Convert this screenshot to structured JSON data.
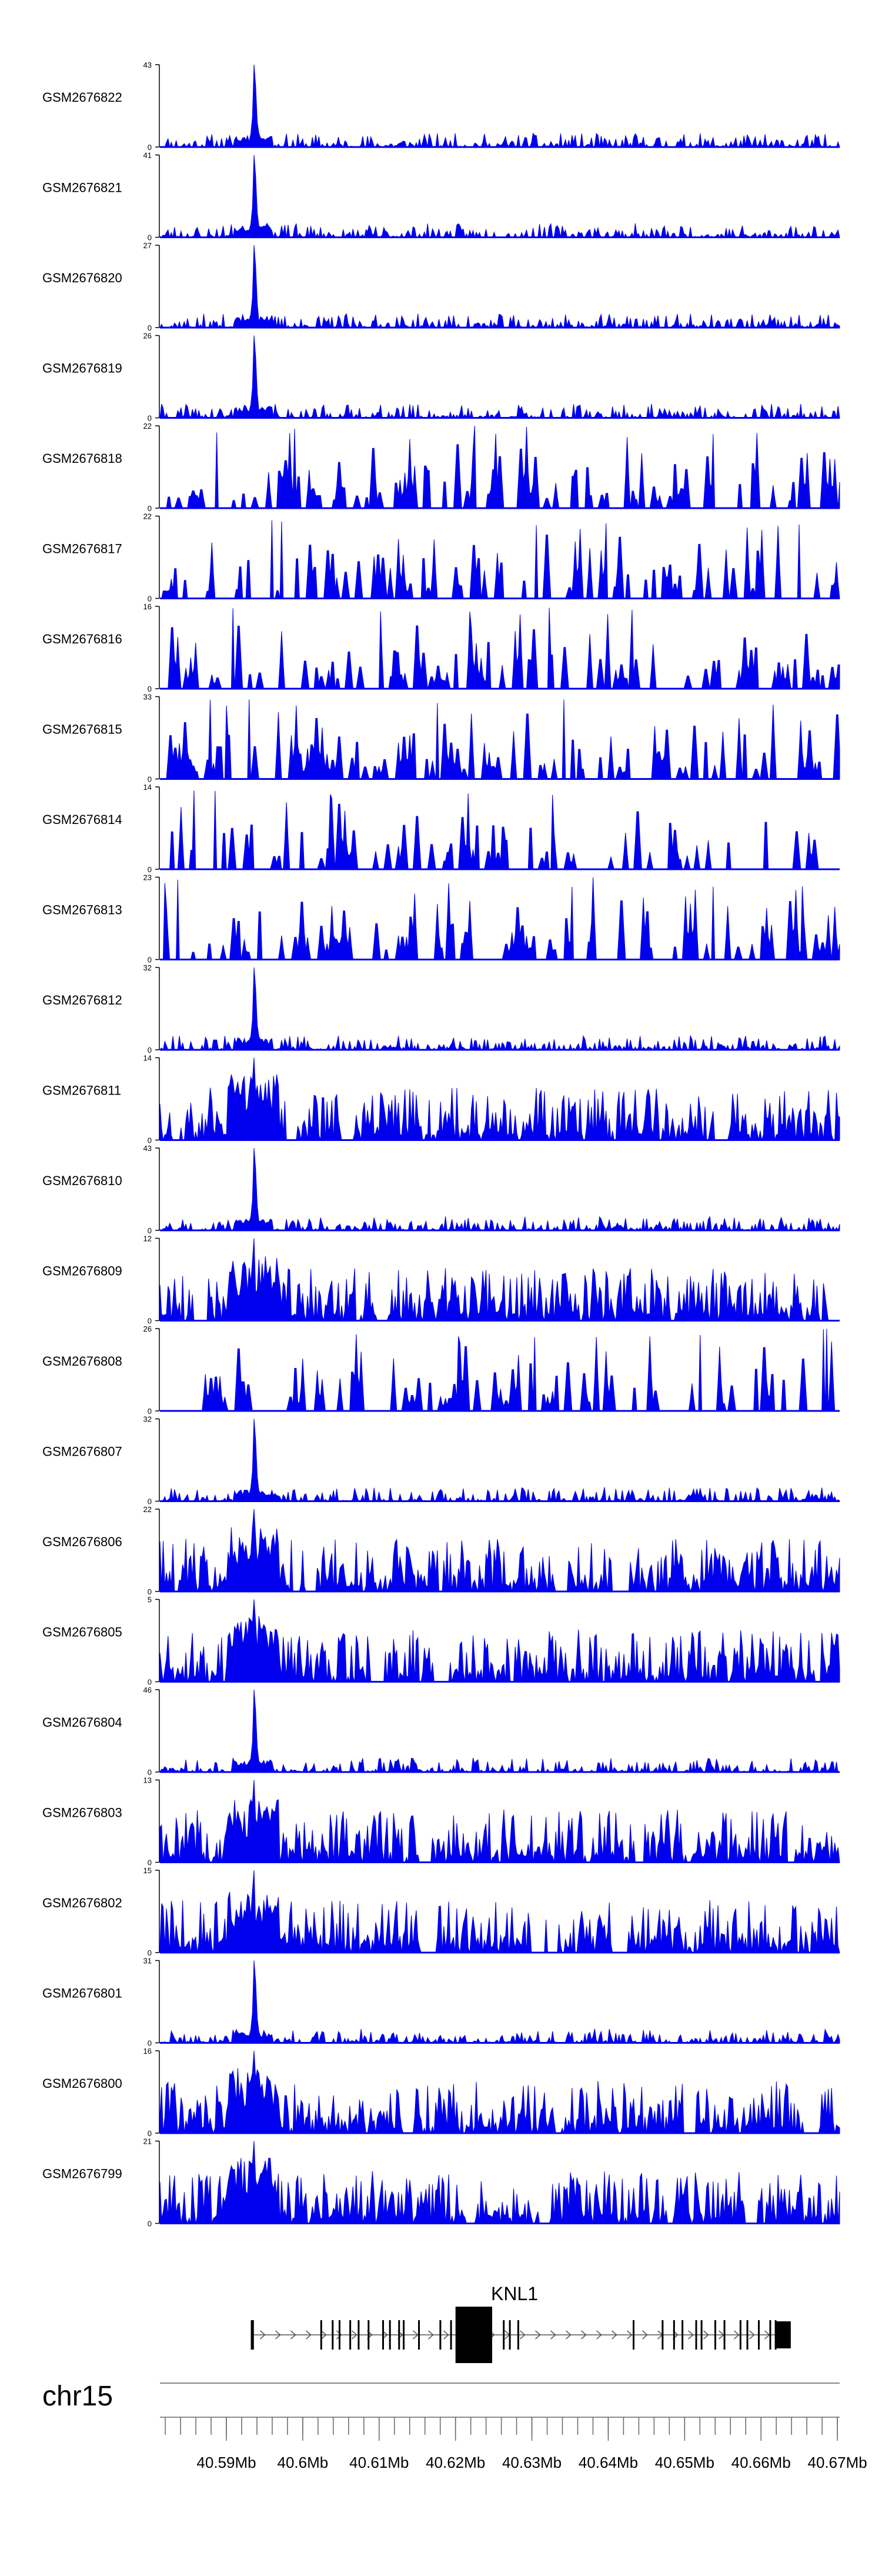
{
  "chart_data": {
    "type": "area",
    "title": "",
    "region": {
      "chromosome": "chr15",
      "xlim": [
        40.5813,
        40.6703
      ],
      "unit": "Mb",
      "tick_labels": [
        "40.59Mb",
        "40.6Mb",
        "40.61Mb",
        "40.62Mb",
        "40.63Mb",
        "40.64Mb",
        "40.65Mb",
        "40.66Mb",
        "40.67Mb"
      ],
      "tick_values": [
        40.59,
        40.6,
        40.61,
        40.62,
        40.63,
        40.64,
        40.65,
        40.66,
        40.67
      ],
      "minor_tick_step": 0.002
    },
    "tracks": [
      {
        "name": "GSM2676822",
        "ymax": 43,
        "ymax_label": "43",
        "ymin_label": "0",
        "profile": "peaked",
        "seed": 11
      },
      {
        "name": "GSM2676821",
        "ymax": 41,
        "ymax_label": "41",
        "ymin_label": "0",
        "profile": "peaked",
        "seed": 23
      },
      {
        "name": "GSM2676820",
        "ymax": 27,
        "ymax_label": "27",
        "ymin_label": "0",
        "profile": "peaked",
        "seed": 37
      },
      {
        "name": "GSM2676819",
        "ymax": 26,
        "ymax_label": "26",
        "ymin_label": "0",
        "profile": "peaked",
        "seed": 41
      },
      {
        "name": "GSM2676818",
        "ymax": 22,
        "ymax_label": "22",
        "ymin_label": "0",
        "profile": "sparse",
        "seed": 53
      },
      {
        "name": "GSM2676817",
        "ymax": 22,
        "ymax_label": "22",
        "ymin_label": "0",
        "profile": "sparse",
        "seed": 67
      },
      {
        "name": "GSM2676816",
        "ymax": 16,
        "ymax_label": "16",
        "ymin_label": "0",
        "profile": "sparse",
        "seed": 71
      },
      {
        "name": "GSM2676815",
        "ymax": 33,
        "ymax_label": "33",
        "ymin_label": "0",
        "profile": "sparse",
        "seed": 83
      },
      {
        "name": "GSM2676814",
        "ymax": 14,
        "ymax_label": "14",
        "ymin_label": "0",
        "profile": "sparse",
        "seed": 97
      },
      {
        "name": "GSM2676813",
        "ymax": 23,
        "ymax_label": "23",
        "ymin_label": "0",
        "profile": "sparse",
        "seed": 101
      },
      {
        "name": "GSM2676812",
        "ymax": 32,
        "ymax_label": "32",
        "ymin_label": "0",
        "profile": "peaked",
        "seed": 113
      },
      {
        "name": "GSM2676811",
        "ymax": 14,
        "ymax_label": "14",
        "ymin_label": "0",
        "profile": "dense",
        "seed": 127
      },
      {
        "name": "GSM2676810",
        "ymax": 43,
        "ymax_label": "43",
        "ymin_label": "0",
        "profile": "peaked",
        "seed": 131
      },
      {
        "name": "GSM2676809",
        "ymax": 12,
        "ymax_label": "12",
        "ymin_label": "0",
        "profile": "dense",
        "seed": 149
      },
      {
        "name": "GSM2676808",
        "ymax": 26,
        "ymax_label": "26",
        "ymin_label": "0",
        "profile": "sparse",
        "seed": 151
      },
      {
        "name": "GSM2676807",
        "ymax": 32,
        "ymax_label": "32",
        "ymin_label": "0",
        "profile": "peaked",
        "seed": 163
      },
      {
        "name": "GSM2676806",
        "ymax": 22,
        "ymax_label": "22",
        "ymin_label": "0",
        "profile": "dense",
        "seed": 173
      },
      {
        "name": "GSM2676805",
        "ymax": 5,
        "ymax_label": "5",
        "ymin_label": "0",
        "profile": "dense",
        "seed": 181
      },
      {
        "name": "GSM2676804",
        "ymax": 46,
        "ymax_label": "46",
        "ymin_label": "0",
        "profile": "peaked",
        "seed": 191
      },
      {
        "name": "GSM2676803",
        "ymax": 13,
        "ymax_label": "13",
        "ymin_label": "0",
        "profile": "dense",
        "seed": 193
      },
      {
        "name": "GSM2676802",
        "ymax": 15,
        "ymax_label": "15",
        "ymin_label": "0",
        "profile": "dense",
        "seed": 197
      },
      {
        "name": "GSM2676801",
        "ymax": 31,
        "ymax_label": "31",
        "ymin_label": "0",
        "profile": "peaked",
        "seed": 211
      },
      {
        "name": "GSM2676800",
        "ymax": 16,
        "ymax_label": "16",
        "ymin_label": "0",
        "profile": "dense",
        "seed": 223
      },
      {
        "name": "GSM2676799",
        "ymax": 21,
        "ymax_label": "21",
        "ymin_label": "0",
        "profile": "dense",
        "seed": 227
      }
    ],
    "signal_peak_position": 40.5937,
    "gene": {
      "name": "KNL1",
      "start": 40.5932,
      "end": 40.6639,
      "strand": "+",
      "exons": [
        {
          "start": 40.5932,
          "end": 40.5936
        },
        {
          "start": 40.6023,
          "end": 40.6024
        },
        {
          "start": 40.6038,
          "end": 40.6039
        },
        {
          "start": 40.6047,
          "end": 40.6048
        },
        {
          "start": 40.6061,
          "end": 40.6062
        },
        {
          "start": 40.6072,
          "end": 40.6073
        },
        {
          "start": 40.6085,
          "end": 40.6086
        },
        {
          "start": 40.6104,
          "end": 40.6105
        },
        {
          "start": 40.6113,
          "end": 40.6114
        },
        {
          "start": 40.6125,
          "end": 40.6126
        },
        {
          "start": 40.6131,
          "end": 40.6132
        },
        {
          "start": 40.6151,
          "end": 40.6152
        },
        {
          "start": 40.6179,
          "end": 40.618
        },
        {
          "start": 40.6193,
          "end": 40.6194
        },
        {
          "start": 40.62,
          "end": 40.6248
        },
        {
          "start": 40.6262,
          "end": 40.6264
        },
        {
          "start": 40.627,
          "end": 40.6272
        },
        {
          "start": 40.6281,
          "end": 40.6283
        },
        {
          "start": 40.6432,
          "end": 40.6434
        },
        {
          "start": 40.647,
          "end": 40.6471
        },
        {
          "start": 40.6485,
          "end": 40.6486
        },
        {
          "start": 40.6496,
          "end": 40.6497
        },
        {
          "start": 40.6514,
          "end": 40.6515
        },
        {
          "start": 40.6521,
          "end": 40.6522
        },
        {
          "start": 40.6539,
          "end": 40.654
        },
        {
          "start": 40.6551,
          "end": 40.6552
        },
        {
          "start": 40.6572,
          "end": 40.6573
        },
        {
          "start": 40.6581,
          "end": 40.6582
        },
        {
          "start": 40.6596,
          "end": 40.6597
        },
        {
          "start": 40.6611,
          "end": 40.6613
        },
        {
          "start": 40.6618,
          "end": 40.6619
        },
        {
          "start": 40.6619,
          "end": 40.6639
        }
      ]
    },
    "colors": {
      "signal": "#0000ee",
      "axis": "#000000",
      "gene": "#000000",
      "intron": "#555555",
      "ideogram_line": "#888888",
      "tick": "#666666"
    }
  }
}
